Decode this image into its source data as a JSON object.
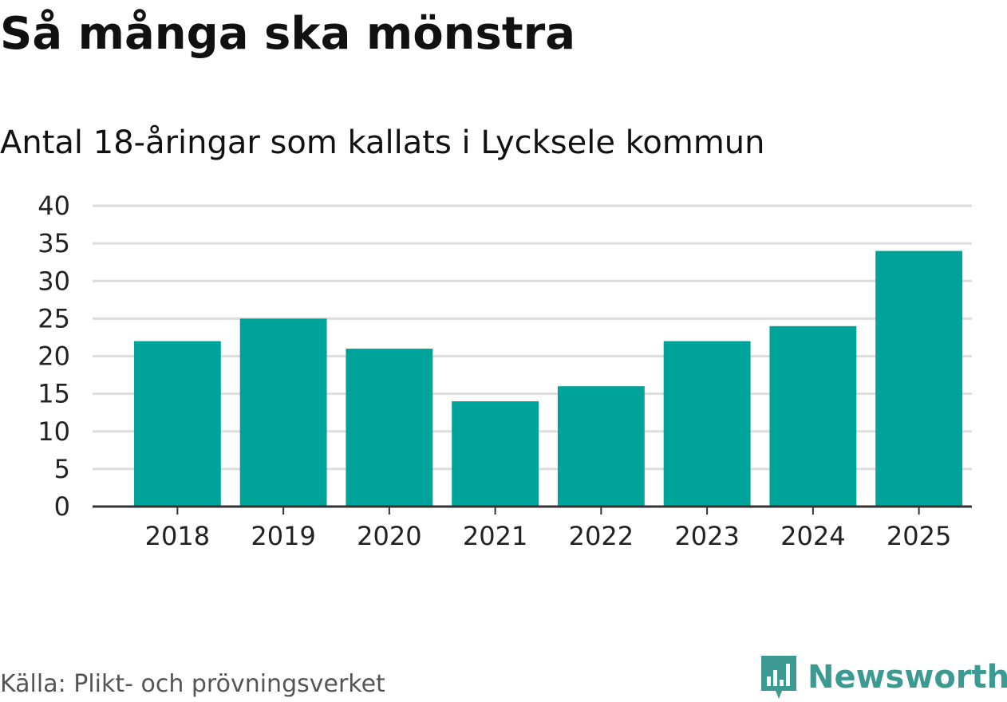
{
  "header": {
    "title": "Så många ska mönstra",
    "subtitle": "Antal 18-åringar som kallats i Lycksele kommun"
  },
  "footer": {
    "source": "Källa: Plikt- och prövningsverket",
    "brand": "Newsworthy",
    "brand_icon": "bar-chart-bubble-icon"
  },
  "colors": {
    "bar": "#00a39a",
    "grid": "#dddddd",
    "axis": "#333333",
    "brand": "#3d9a93"
  },
  "chart_data": {
    "type": "bar",
    "title": "Antal 18-åringar som kallats i Lycksele kommun",
    "xlabel": "",
    "ylabel": "",
    "categories": [
      "2018",
      "2019",
      "2020",
      "2021",
      "2022",
      "2023",
      "2024",
      "2025"
    ],
    "values": [
      22,
      25,
      21,
      14,
      16,
      22,
      24,
      34
    ],
    "ylim": [
      0,
      40
    ],
    "yticks": [
      0,
      5,
      10,
      15,
      20,
      25,
      30,
      35,
      40
    ],
    "grid": true
  }
}
